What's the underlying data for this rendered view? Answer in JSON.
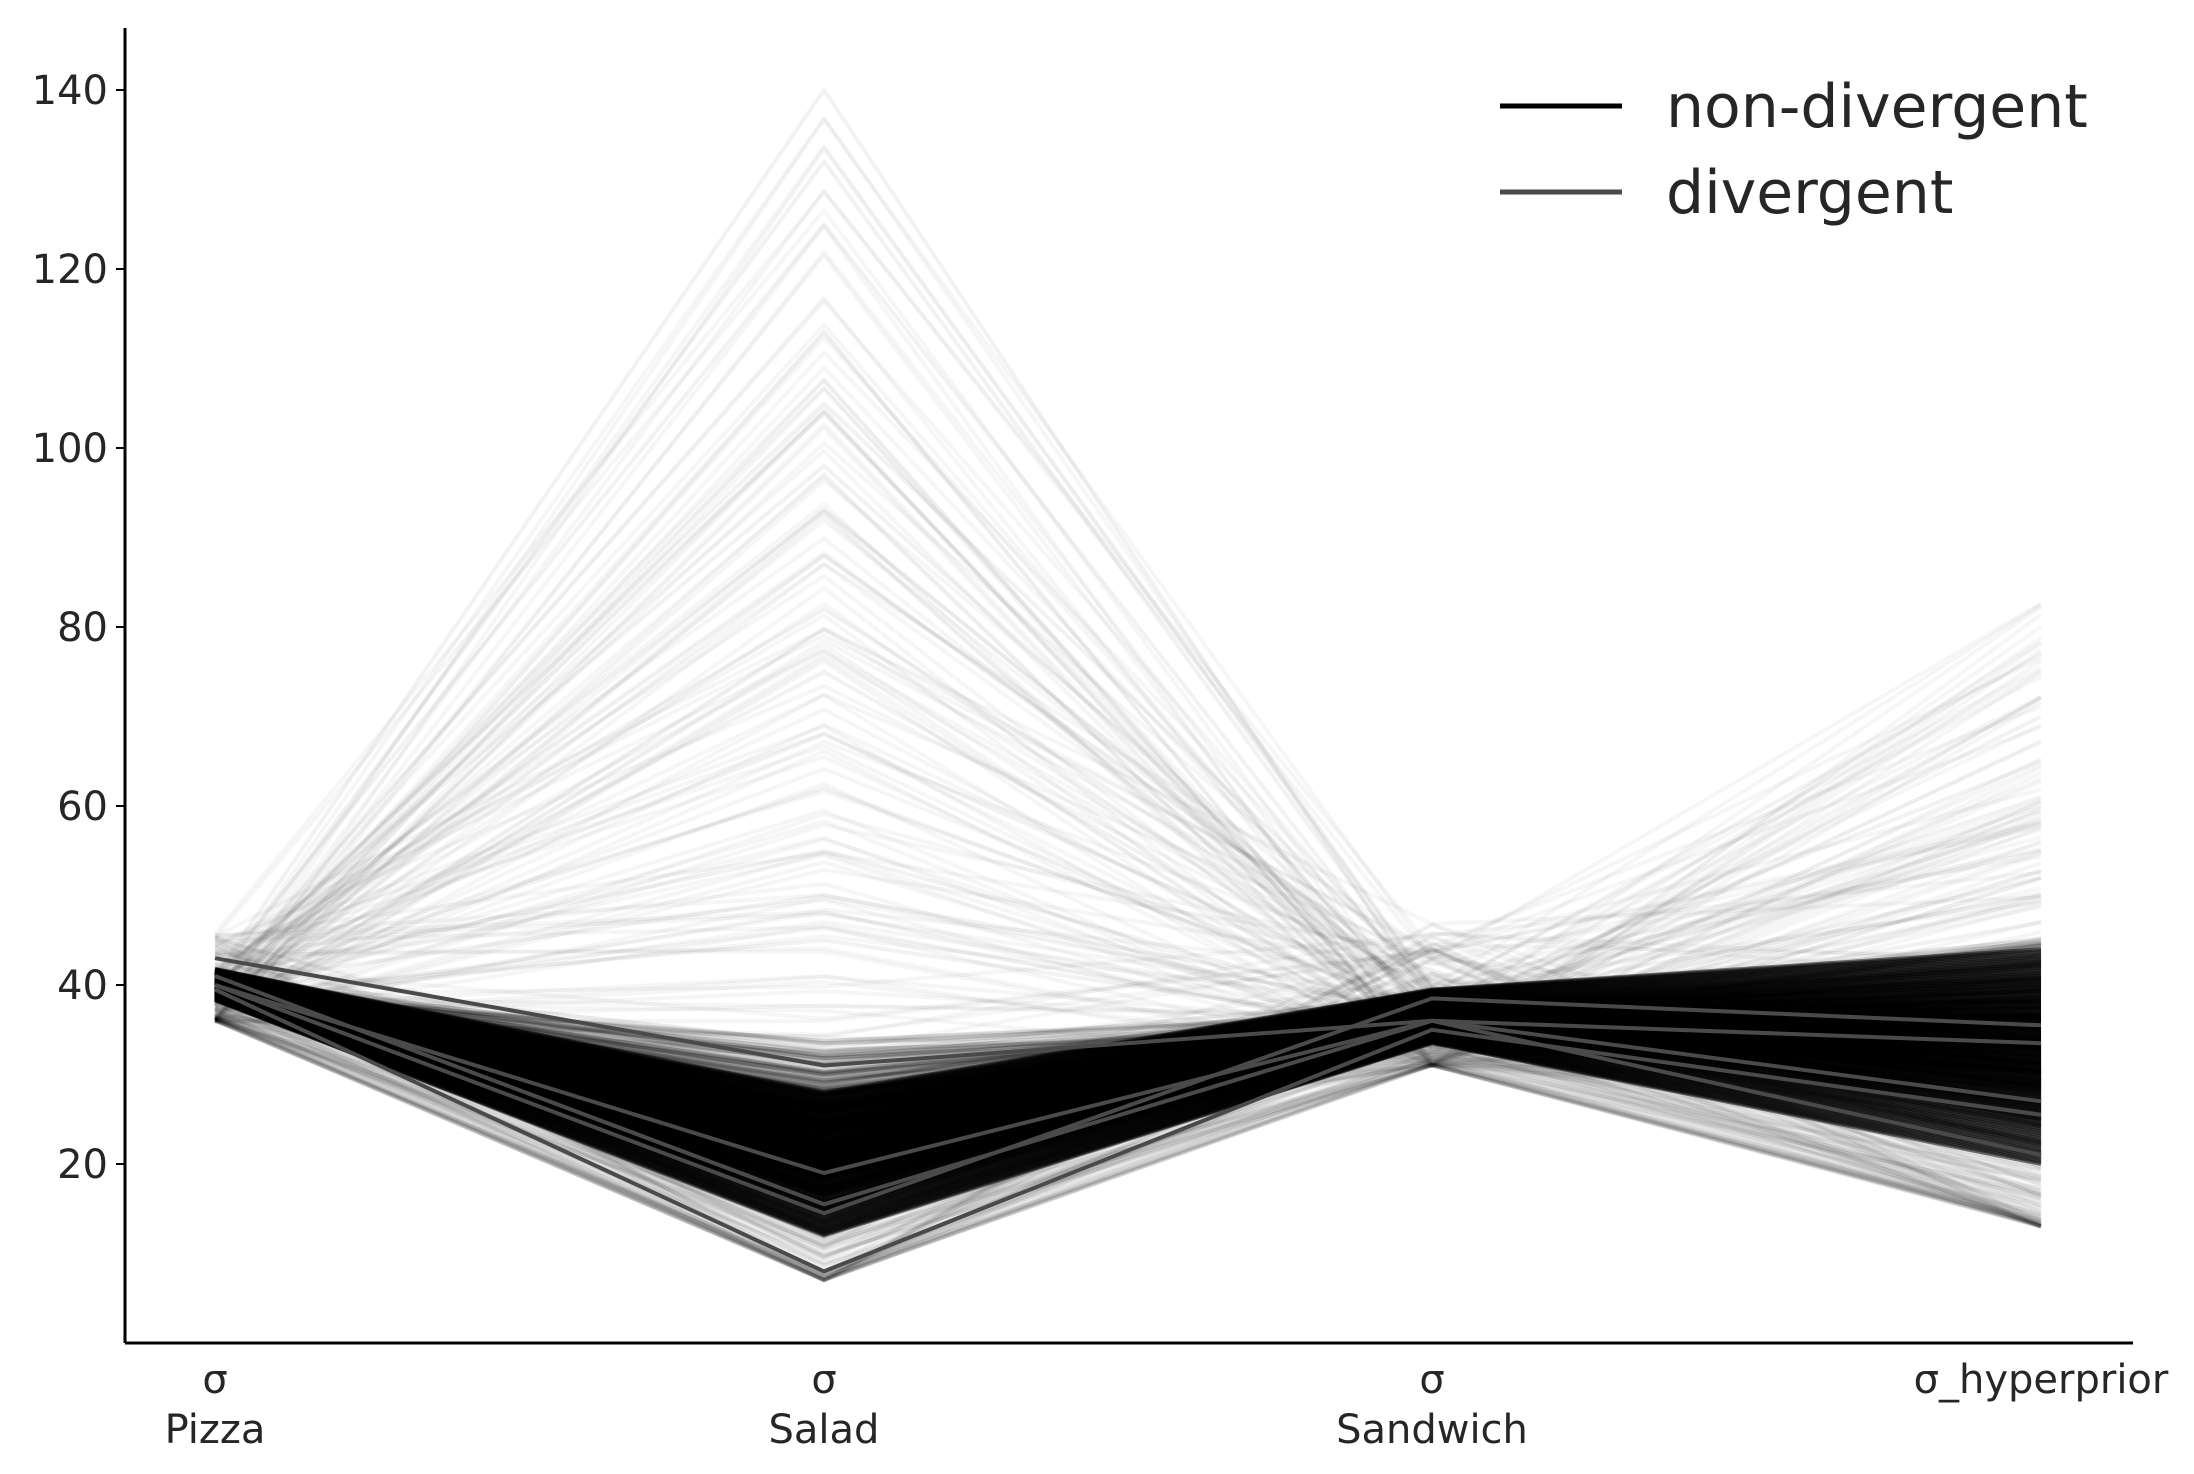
{
  "chart_data": {
    "type": "line",
    "subtype": "parallel-coordinates",
    "title": "",
    "xlabel": "",
    "ylabel": "",
    "categories": [
      "σ\nPizza",
      "σ\nSalad",
      "σ\nSandwich",
      "σ_hyperprior"
    ],
    "ylim": [
      0,
      147
    ],
    "yticks": [
      20,
      40,
      60,
      80,
      100,
      120,
      140
    ],
    "grid": false,
    "legend": {
      "position": "top-right",
      "entries": [
        {
          "label": "non-divergent",
          "color": "#000000"
        },
        {
          "label": "divergent",
          "color": "#4a4a4a"
        }
      ]
    },
    "non_divergent_band": {
      "description": "thousands of semi-transparent sample lines",
      "core_low": [
        38,
        10,
        33,
        18
      ],
      "core_high": [
        42,
        35,
        40,
        48
      ],
      "min": [
        36,
        7,
        31,
        13
      ],
      "max": [
        46,
        140,
        47,
        83
      ],
      "highlighted_samples": [
        [
          41,
          140,
          38,
          40
        ],
        [
          40,
          132,
          39,
          45
        ],
        [
          41,
          125,
          38,
          42
        ],
        [
          40,
          105,
          40,
          55
        ],
        [
          41,
          98,
          37,
          60
        ],
        [
          40,
          93,
          38,
          50
        ],
        [
          42,
          82,
          39,
          77
        ],
        [
          39,
          75,
          36,
          70
        ],
        [
          41,
          68,
          38,
          65
        ],
        [
          40,
          62,
          37,
          58
        ],
        [
          41,
          55,
          36,
          52
        ],
        [
          40,
          50,
          38,
          61
        ],
        [
          39,
          45,
          35,
          47
        ]
      ]
    },
    "series": [
      {
        "name": "divergent",
        "values": [
          43,
          31,
          36,
          27
        ]
      },
      {
        "name": "divergent",
        "values": [
          40,
          14.5,
          38.5,
          35.5
        ]
      },
      {
        "name": "divergent",
        "values": [
          41,
          15.5,
          36,
          21
        ]
      },
      {
        "name": "divergent",
        "values": [
          40,
          19,
          36,
          33.5
        ]
      },
      {
        "name": "divergent",
        "values": [
          39.5,
          8,
          35,
          25.5
        ]
      }
    ]
  }
}
